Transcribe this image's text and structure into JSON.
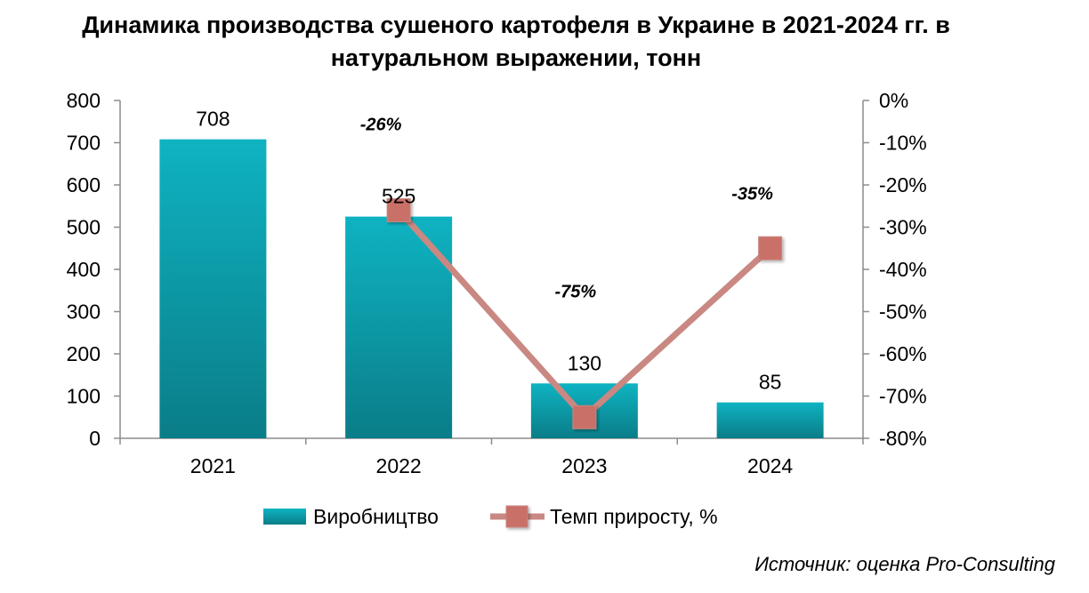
{
  "title_line1": "Динамика производства сушеного картофеля в Украине в 2021-2024 гг. в",
  "title_line2": "натуральном выражении, тонн",
  "source": "Источник: оценка Pro-Consulting",
  "colors": {
    "bar_light": "#0fb3c2",
    "bar_dark": "#0a7d88",
    "line": "#c98882",
    "marker": "#c97068",
    "axis": "#8c8c8c"
  },
  "chart_data": {
    "type": "bar",
    "categories": [
      "2021",
      "2022",
      "2023",
      "2024"
    ],
    "series": [
      {
        "name": "Виробництво",
        "type": "bar",
        "axis": "left",
        "values": [
          708,
          525,
          130,
          85
        ],
        "labels": [
          "708",
          "525",
          "130",
          "85"
        ]
      },
      {
        "name": "Темп приросту, %",
        "type": "line",
        "axis": "right",
        "values": [
          null,
          -26,
          -75,
          -35
        ],
        "labels": [
          "",
          "-26%",
          "-75%",
          "-35%"
        ]
      }
    ],
    "y_left": {
      "min": 0,
      "max": 800,
      "ticks": [
        "0",
        "100",
        "200",
        "300",
        "400",
        "500",
        "600",
        "700",
        "800"
      ]
    },
    "y_right": {
      "min": -80,
      "max": 0,
      "ticks": [
        "-80%",
        "-70%",
        "-60%",
        "-50%",
        "-40%",
        "-30%",
        "-20%",
        "-10%",
        "0%"
      ]
    },
    "grid": false,
    "legend_position": "bottom"
  }
}
